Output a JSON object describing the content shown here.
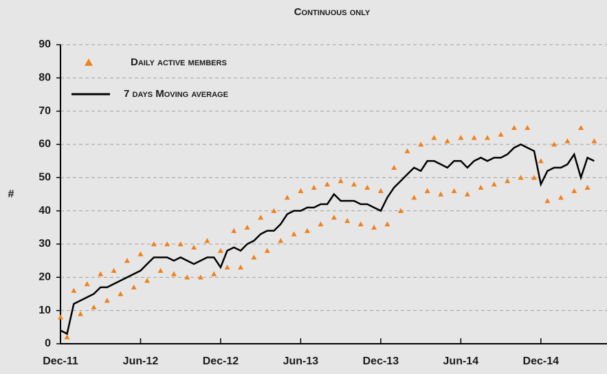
{
  "chart_data": {
    "type": "scatter-line",
    "title": "Continuous only",
    "ylabel": "#",
    "x": [
      2011.917,
      2011.958,
      2012.0,
      2012.042,
      2012.083,
      2012.125,
      2012.167,
      2012.208,
      2012.25,
      2012.292,
      2012.333,
      2012.375,
      2012.417,
      2012.458,
      2012.5,
      2012.542,
      2012.583,
      2012.625,
      2012.667,
      2012.708,
      2012.75,
      2012.792,
      2012.833,
      2012.875,
      2012.917,
      2012.958,
      2013.0,
      2013.042,
      2013.083,
      2013.125,
      2013.167,
      2013.208,
      2013.25,
      2013.292,
      2013.333,
      2013.375,
      2013.417,
      2013.458,
      2013.5,
      2013.542,
      2013.583,
      2013.625,
      2013.667,
      2013.708,
      2013.75,
      2013.792,
      2013.833,
      2013.875,
      2013.917,
      2013.958,
      2014.0,
      2014.042,
      2014.083,
      2014.125,
      2014.167,
      2014.208,
      2014.25,
      2014.292,
      2014.333,
      2014.375,
      2014.417,
      2014.458,
      2014.5,
      2014.542,
      2014.583,
      2014.625,
      2014.667,
      2014.708,
      2014.75,
      2014.792,
      2014.833,
      2014.875,
      2014.917,
      2014.958,
      2015.0,
      2015.042,
      2015.083,
      2015.125,
      2015.167,
      2015.208,
      2015.25
    ],
    "series": [
      {
        "name": "Daily active members",
        "color": "#f0821e",
        "mark": "triangle",
        "values": [
          8,
          2,
          16,
          9,
          18,
          11,
          21,
          13,
          22,
          15,
          25,
          17,
          27,
          19,
          30,
          22,
          30,
          21,
          30,
          20,
          29,
          20,
          31,
          21,
          28,
          23,
          34,
          23,
          35,
          26,
          38,
          28,
          40,
          31,
          44,
          33,
          46,
          34,
          47,
          36,
          48,
          38,
          49,
          37,
          48,
          36,
          47,
          35,
          46,
          36,
          53,
          40,
          58,
          44,
          60,
          46,
          62,
          45,
          61,
          46,
          62,
          45,
          62,
          47,
          62,
          48,
          63,
          49,
          65,
          50,
          65,
          50,
          55,
          43,
          60,
          44,
          61,
          46,
          65,
          47,
          61
        ]
      },
      {
        "name": "7 days Moving average",
        "color": "#000000",
        "mark": "line",
        "values": [
          4,
          3,
          12,
          13,
          14,
          15,
          17,
          17,
          18,
          19,
          20,
          21,
          22,
          24,
          26,
          26,
          26,
          25,
          26,
          25,
          24,
          25,
          26,
          26,
          23,
          28,
          29,
          28,
          30,
          31,
          33,
          34,
          34,
          36,
          39,
          40,
          40,
          41,
          41,
          42,
          42,
          45,
          43,
          43,
          43,
          42,
          42,
          41,
          40,
          44,
          47,
          49,
          51,
          53,
          52,
          55,
          55,
          54,
          53,
          55,
          55,
          53,
          55,
          56,
          55,
          56,
          56,
          57,
          59,
          60,
          59,
          58,
          48,
          52,
          53,
          53,
          54,
          57,
          50,
          56,
          55
        ]
      }
    ],
    "xlim": [
      2011.917,
      2015.33
    ],
    "xticks": [
      {
        "value": 2011.917,
        "label": "Dec-11"
      },
      {
        "value": 2012.417,
        "label": "Jun-12"
      },
      {
        "value": 2012.917,
        "label": "Dec-12"
      },
      {
        "value": 2013.417,
        "label": "Jun-13"
      },
      {
        "value": 2013.917,
        "label": "Dec-13"
      },
      {
        "value": 2014.417,
        "label": "Jun-14"
      },
      {
        "value": 2014.917,
        "label": "Dec-14"
      }
    ],
    "ylim": [
      0,
      90
    ],
    "yticks": [
      0,
      10,
      20,
      30,
      40,
      50,
      60,
      70,
      80,
      90
    ],
    "grid": true,
    "legend": "upper left"
  }
}
